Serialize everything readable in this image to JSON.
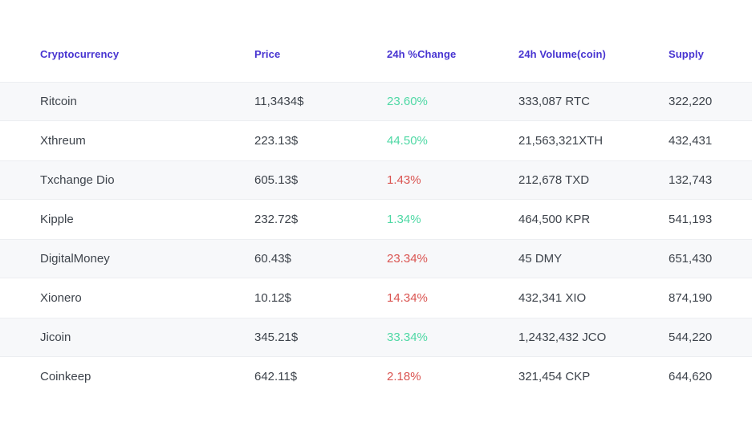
{
  "table": {
    "columns": {
      "name": {
        "label": "Cryptocurrency"
      },
      "price": {
        "label": "Price"
      },
      "change": {
        "label": "24h %Change"
      },
      "volume": {
        "label": "24h Volume(coin)"
      },
      "supply": {
        "label": "Supply"
      }
    },
    "colors": {
      "header_text": "#4734d1",
      "body_text": "#3d434b",
      "positive_change": "#4ed8a4",
      "negative_change": "#da5451",
      "stripe_background": "#f7f8fa"
    },
    "rows": [
      {
        "name": "Ritcoin",
        "price": "11,3434$",
        "change": "23.60%",
        "change_direction": "up",
        "volume": "333,087 RTC",
        "supply": "322,220"
      },
      {
        "name": "Xthreum",
        "price": "223.13$",
        "change": "44.50%",
        "change_direction": "up",
        "volume": "21,563,321XTH",
        "supply": "432,431"
      },
      {
        "name": "Txchange Dio",
        "price": "605.13$",
        "change": "1.43%",
        "change_direction": "down",
        "volume": "212,678 TXD",
        "supply": "132,743"
      },
      {
        "name": "Kipple",
        "price": "232.72$",
        "change": "1.34%",
        "change_direction": "up",
        "volume": "464,500 KPR",
        "supply": "541,193"
      },
      {
        "name": "DigitalMoney",
        "price": "60.43$",
        "change": "23.34%",
        "change_direction": "down",
        "volume": "45 DMY",
        "supply": "651,430"
      },
      {
        "name": "Xionero",
        "price": "10.12$",
        "change": "14.34%",
        "change_direction": "down",
        "volume": "432,341 XIO",
        "supply": "874,190"
      },
      {
        "name": "Jicoin",
        "price": "345.21$",
        "change": "33.34%",
        "change_direction": "up",
        "volume": "1,2432,432 JCO",
        "supply": "544,220"
      },
      {
        "name": "Coinkeep",
        "price": "642.11$",
        "change": "2.18%",
        "change_direction": "down",
        "volume": "321,454 CKP",
        "supply": "644,620"
      }
    ]
  }
}
